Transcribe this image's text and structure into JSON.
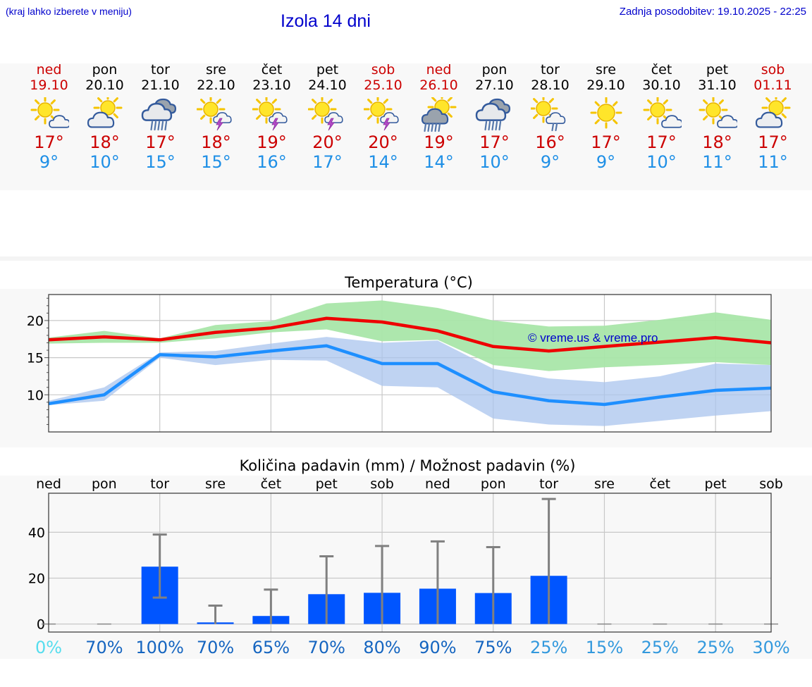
{
  "header": {
    "hint": "(kraj lahko izberete v meniju)",
    "title": "Izola 14 dni",
    "updated": "Zadnja posodobitev: 19.10.2025 - 22:25"
  },
  "days": [
    {
      "name": "ned",
      "date": "19.10",
      "weekend": true,
      "icon": "sun-cloud-icon",
      "max": "17°",
      "min": "9°"
    },
    {
      "name": "pon",
      "date": "20.10",
      "weekend": false,
      "icon": "cloud-sun-icon",
      "max": "18°",
      "min": "10°"
    },
    {
      "name": "tor",
      "date": "21.10",
      "weekend": false,
      "icon": "cloud-heavy-rain-icon",
      "max": "17°",
      "min": "15°"
    },
    {
      "name": "sre",
      "date": "22.10",
      "weekend": false,
      "icon": "sun-thunder-icon",
      "max": "18°",
      "min": "15°"
    },
    {
      "name": "čet",
      "date": "23.10",
      "weekend": false,
      "icon": "sun-thunder-icon",
      "max": "19°",
      "min": "16°"
    },
    {
      "name": "pet",
      "date": "24.10",
      "weekend": false,
      "icon": "sun-thunder-icon",
      "max": "20°",
      "min": "17°"
    },
    {
      "name": "sob",
      "date": "25.10",
      "weekend": true,
      "icon": "sun-thunder-icon",
      "max": "20°",
      "min": "14°"
    },
    {
      "name": "ned",
      "date": "26.10",
      "weekend": true,
      "icon": "sun-rain-icon",
      "max": "19°",
      "min": "14°"
    },
    {
      "name": "pon",
      "date": "27.10",
      "weekend": false,
      "icon": "cloud-heavy-rain-icon",
      "max": "17°",
      "min": "10°"
    },
    {
      "name": "tor",
      "date": "28.10",
      "weekend": false,
      "icon": "sun-light-rain-icon",
      "max": "16°",
      "min": "9°"
    },
    {
      "name": "sre",
      "date": "29.10",
      "weekend": false,
      "icon": "sun-icon",
      "max": "17°",
      "min": "9°"
    },
    {
      "name": "čet",
      "date": "30.10",
      "weekend": false,
      "icon": "sun-cloud-icon",
      "max": "17°",
      "min": "10°"
    },
    {
      "name": "pet",
      "date": "31.10",
      "weekend": false,
      "icon": "sun-cloud-icon",
      "max": "18°",
      "min": "11°"
    },
    {
      "name": "sob",
      "date": "01.11",
      "weekend": true,
      "icon": "cloud-sun-icon",
      "max": "17°",
      "min": "11°"
    }
  ],
  "colors": {
    "weekend": "#cc0000",
    "weekday": "#000000",
    "max_temp": "#cc0000",
    "min_temp": "#1e8fe6",
    "max_line": "#ee0000",
    "min_line": "#1e8fff",
    "max_band": "#a9e6a9",
    "min_band": "#aac4ee",
    "bar": "#0055ff",
    "error_bar": "#808080",
    "watermark": "#0000cc"
  },
  "chart_data": [
    {
      "type": "line",
      "title": "Temperatura (°C)",
      "watermark": "© vreme.us & vreme.pro",
      "x": [
        "19.10",
        "20.10",
        "21.10",
        "22.10",
        "23.10",
        "24.10",
        "25.10",
        "26.10",
        "27.10",
        "28.10",
        "29.10",
        "30.10",
        "31.10",
        "01.11"
      ],
      "ylim": [
        5,
        23.5
      ],
      "yticks": [
        10,
        15,
        20
      ],
      "grid": true,
      "series": [
        {
          "role": "max",
          "values": [
            17.4,
            17.8,
            17.4,
            18.4,
            19.0,
            20.3,
            19.8,
            18.6,
            16.5,
            15.9,
            16.5,
            17.1,
            17.7,
            17.0
          ],
          "band_low": [
            16.9,
            17.0,
            17.0,
            17.6,
            18.4,
            18.8,
            17.2,
            17.4,
            14.0,
            13.2,
            13.7,
            14.0,
            14.4,
            14.0
          ],
          "band_high": [
            17.7,
            18.6,
            17.6,
            19.4,
            19.9,
            22.3,
            22.7,
            21.7,
            20.0,
            19.2,
            19.3,
            20.1,
            21.1,
            20.1
          ]
        },
        {
          "role": "min",
          "values": [
            8.8,
            10.0,
            15.4,
            15.1,
            15.9,
            16.6,
            14.2,
            14.2,
            10.4,
            9.2,
            8.7,
            9.7,
            10.6,
            10.9
          ],
          "band_low": [
            8.6,
            9.2,
            15.0,
            14.0,
            14.7,
            14.6,
            11.2,
            11.0,
            6.8,
            6.0,
            5.8,
            6.5,
            7.2,
            7.8
          ],
          "band_high": [
            9.2,
            11.0,
            15.7,
            15.9,
            16.9,
            17.8,
            17.0,
            17.3,
            13.5,
            12.2,
            11.7,
            12.5,
            14.2,
            14.0
          ]
        }
      ]
    },
    {
      "type": "bar",
      "title": "Količina padavin (mm) / Možnost padavin (%)",
      "categories": [
        "ned",
        "pon",
        "tor",
        "sre",
        "čet",
        "pet",
        "sob",
        "ned",
        "pon",
        "tor",
        "sre",
        "čet",
        "pet",
        "sob"
      ],
      "values": [
        0,
        0,
        25,
        0.7,
        3.5,
        13,
        13.6,
        15.4,
        13.5,
        21,
        0,
        0,
        0,
        0
      ],
      "error_high": [
        0,
        0,
        39,
        8,
        15,
        29.5,
        34,
        36,
        33.5,
        54.5,
        0,
        0,
        0,
        0
      ],
      "error_low": [
        0,
        0,
        11.5,
        0,
        0,
        0,
        0,
        0,
        0,
        0,
        0,
        0,
        0,
        0
      ],
      "probabilities": [
        "0%",
        "70%",
        "100%",
        "70%",
        "65%",
        "70%",
        "80%",
        "90%",
        "75%",
        "25%",
        "15%",
        "25%",
        "25%",
        "30%"
      ],
      "prob_colors": [
        "#55ddee",
        "#1565c0",
        "#1565c0",
        "#1565c0",
        "#1565c0",
        "#1565c0",
        "#1565c0",
        "#1565c0",
        "#1565c0",
        "#3399dd",
        "#3399dd",
        "#3399dd",
        "#3399dd",
        "#3399dd"
      ],
      "ylim": [
        -3.5,
        57
      ],
      "yticks": [
        0,
        20,
        40
      ],
      "grid": true
    }
  ]
}
